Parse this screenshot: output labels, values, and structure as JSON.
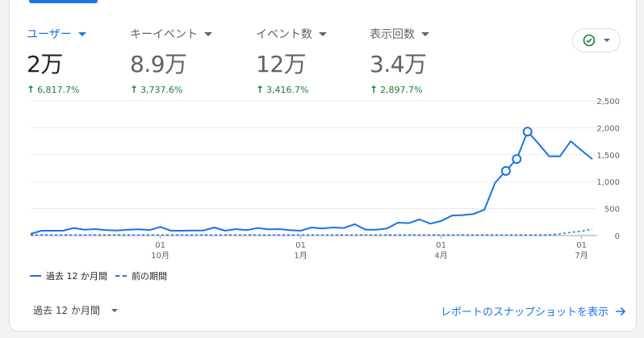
{
  "metrics": [
    {
      "label": "ユーザー",
      "value": "2万",
      "change": "6,817.7%",
      "active": true
    },
    {
      "label": "キーイベント",
      "value": "8.9万",
      "change": "3,737.6%",
      "active": false
    },
    {
      "label": "イベント数",
      "value": "12万",
      "change": "3,416.7%",
      "active": false
    },
    {
      "label": "表示回数",
      "value": "3.4万",
      "change": "2,897.7%",
      "active": false
    }
  ],
  "status": {
    "icon": "check-circle-icon",
    "color": "#188038"
  },
  "chart_data": {
    "type": "line",
    "y_ticks": [
      "2,500",
      "2,000",
      "1,500",
      "1,000",
      "500",
      "0"
    ],
    "ylim": [
      0,
      2500
    ],
    "x_ticks": [
      {
        "day": "01",
        "month": "10月",
        "index": 12
      },
      {
        "day": "01",
        "month": "1月",
        "index": 25
      },
      {
        "day": "01",
        "month": "4月",
        "index": 38
      },
      {
        "day": "01",
        "month": "7月",
        "index": 51
      }
    ],
    "series": [
      {
        "name": "過去 12 か月間",
        "style": "solid",
        "color": "#1a73e8",
        "values": [
          30,
          90,
          90,
          90,
          140,
          110,
          120,
          100,
          95,
          110,
          115,
          100,
          160,
          90,
          90,
          95,
          95,
          150,
          90,
          120,
          100,
          140,
          115,
          120,
          100,
          90,
          150,
          130,
          150,
          140,
          210,
          110,
          110,
          130,
          240,
          230,
          300,
          220,
          270,
          370,
          380,
          400,
          480,
          980,
          1200,
          1420,
          1930,
          1710,
          1470,
          1470,
          1750,
          1580,
          1420
        ],
        "markers": [
          44,
          45,
          46
        ]
      },
      {
        "name": "前の期間",
        "style": "dashed",
        "color": "#1a73e8",
        "values": [
          10,
          10,
          10,
          10,
          10,
          10,
          10,
          10,
          10,
          10,
          10,
          10,
          10,
          10,
          10,
          10,
          10,
          10,
          10,
          10,
          10,
          10,
          10,
          10,
          10,
          10,
          10,
          10,
          10,
          10,
          10,
          10,
          10,
          10,
          10,
          10,
          10,
          10,
          10,
          10,
          10,
          10,
          10,
          10,
          10,
          10,
          10,
          10,
          10,
          30,
          60,
          80,
          120
        ]
      }
    ]
  },
  "legend": {
    "series_1": "過去 12 か月間",
    "series_2": "前の期間"
  },
  "footer": {
    "period": "過去 12 か月間",
    "snapshot_link": "レポートのスナップショットを表示"
  }
}
